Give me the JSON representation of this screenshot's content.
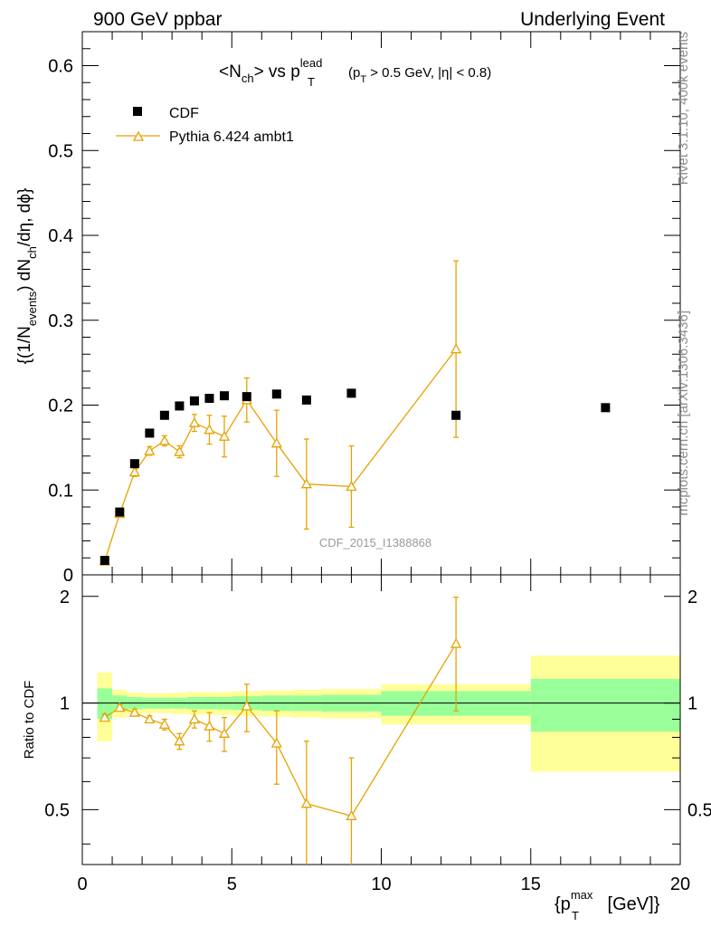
{
  "header": {
    "left_label": "900 GeV ppbar",
    "right_label": "Underlying Event"
  },
  "side_labels": {
    "rivet": "Rivet 3.1.10,  400k events",
    "mcplots": "mcplots.cern.ch [arXiv:1306.3436]"
  },
  "chart_data": [
    {
      "type": "scatter",
      "title_parts": {
        "a": "<N",
        "a_sub": "ch",
        "b": "> vs p",
        "b_sup": "lead",
        "b_sub": "T",
        "c": "(p",
        "c_sub": "T",
        "d": " > 0.5 GeV, |η| < 0.8)"
      },
      "ylabel_parts": {
        "a": "{(1/N",
        "a_sub": "events",
        "b": ") dN",
        "b_sub": "ch",
        "c": "/dη, dϕ}"
      },
      "watermark": "CDF_2015_I1388868",
      "xlim": [
        0,
        20
      ],
      "ylim": [
        0,
        0.64
      ],
      "yticks": [
        0,
        0.1,
        0.2,
        0.3,
        0.4,
        0.5,
        0.6
      ],
      "ytick_labels": [
        "0",
        "0.1",
        "0.2",
        "0.3",
        "0.4",
        "0.5",
        "0.6"
      ],
      "legend_position": "top-left",
      "series": [
        {
          "name": "CDF",
          "marker": "square",
          "color": "#000000",
          "x": [
            0.75,
            1.25,
            1.75,
            2.25,
            2.75,
            3.25,
            3.75,
            4.25,
            4.75,
            5.5,
            6.5,
            7.5,
            9.0,
            12.5,
            17.5
          ],
          "y": [
            0.017,
            0.074,
            0.131,
            0.167,
            0.188,
            0.199,
            0.205,
            0.208,
            0.211,
            0.21,
            0.213,
            0.206,
            0.214,
            0.188,
            0.197
          ]
        },
        {
          "name": "Pythia 6.424 ambt1",
          "marker": "open-triangle",
          "color": "#e8a200",
          "x": [
            0.75,
            1.25,
            1.75,
            2.25,
            2.75,
            3.25,
            3.75,
            4.25,
            4.75,
            5.5,
            6.5,
            7.5,
            9.0,
            12.5
          ],
          "y": [
            0.016,
            0.072,
            0.121,
            0.146,
            0.158,
            0.145,
            0.179,
            0.171,
            0.163,
            0.206,
            0.155,
            0.107,
            0.104,
            0.266
          ],
          "yerr": [
            0.002,
            0.004,
            0.005,
            0.005,
            0.006,
            0.007,
            0.01,
            0.017,
            0.024,
            0.026,
            0.039,
            0.053,
            0.048,
            0.104
          ]
        }
      ]
    },
    {
      "type": "scatter",
      "ylabel": "Ratio to CDF",
      "xlabel_parts": {
        "a": "{p",
        "a_sup": "max",
        "a_sub": "T",
        "b": " [GeV]}"
      },
      "xlim": [
        0,
        20
      ],
      "ylim": [
        0.35,
        2.3
      ],
      "xticks": [
        0,
        5,
        10,
        15,
        20
      ],
      "xtick_labels": [
        "0",
        "5",
        "10",
        "15",
        "20"
      ],
      "yticks": [
        0.5,
        1,
        2
      ],
      "ytick_labels": [
        "0.5",
        "1",
        "2"
      ],
      "reference_line": 1,
      "bands": {
        "edges": [
          0.5,
          1.0,
          1.5,
          2.0,
          2.5,
          3.0,
          3.5,
          4.0,
          4.5,
          5.0,
          6.0,
          7.0,
          8.0,
          10.0,
          15.0,
          20.0
        ],
        "inner_color": "#99ff99",
        "outer_color": "#ffff99",
        "inner": [
          0.1,
          0.05,
          0.04,
          0.035,
          0.035,
          0.035,
          0.04,
          0.04,
          0.04,
          0.045,
          0.05,
          0.05,
          0.055,
          0.08,
          0.17
        ],
        "outer": [
          0.22,
          0.09,
          0.07,
          0.065,
          0.065,
          0.07,
          0.075,
          0.075,
          0.075,
          0.08,
          0.085,
          0.09,
          0.095,
          0.13,
          0.36
        ]
      },
      "series": [
        {
          "name": "Pythia 6.424 ambt1",
          "marker": "open-triangle",
          "color": "#e8a200",
          "x": [
            0.75,
            1.25,
            1.75,
            2.25,
            2.75,
            3.25,
            3.75,
            4.25,
            4.75,
            5.5,
            6.5,
            7.5,
            9.0,
            12.5
          ],
          "y": [
            0.91,
            0.97,
            0.94,
            0.9,
            0.87,
            0.78,
            0.9,
            0.86,
            0.82,
            0.98,
            0.77,
            0.52,
            0.48,
            1.47
          ],
          "yerr": [
            0.02,
            0.02,
            0.02,
            0.02,
            0.03,
            0.04,
            0.05,
            0.08,
            0.09,
            0.15,
            0.18,
            0.26,
            0.22,
            0.52
          ]
        }
      ]
    }
  ]
}
